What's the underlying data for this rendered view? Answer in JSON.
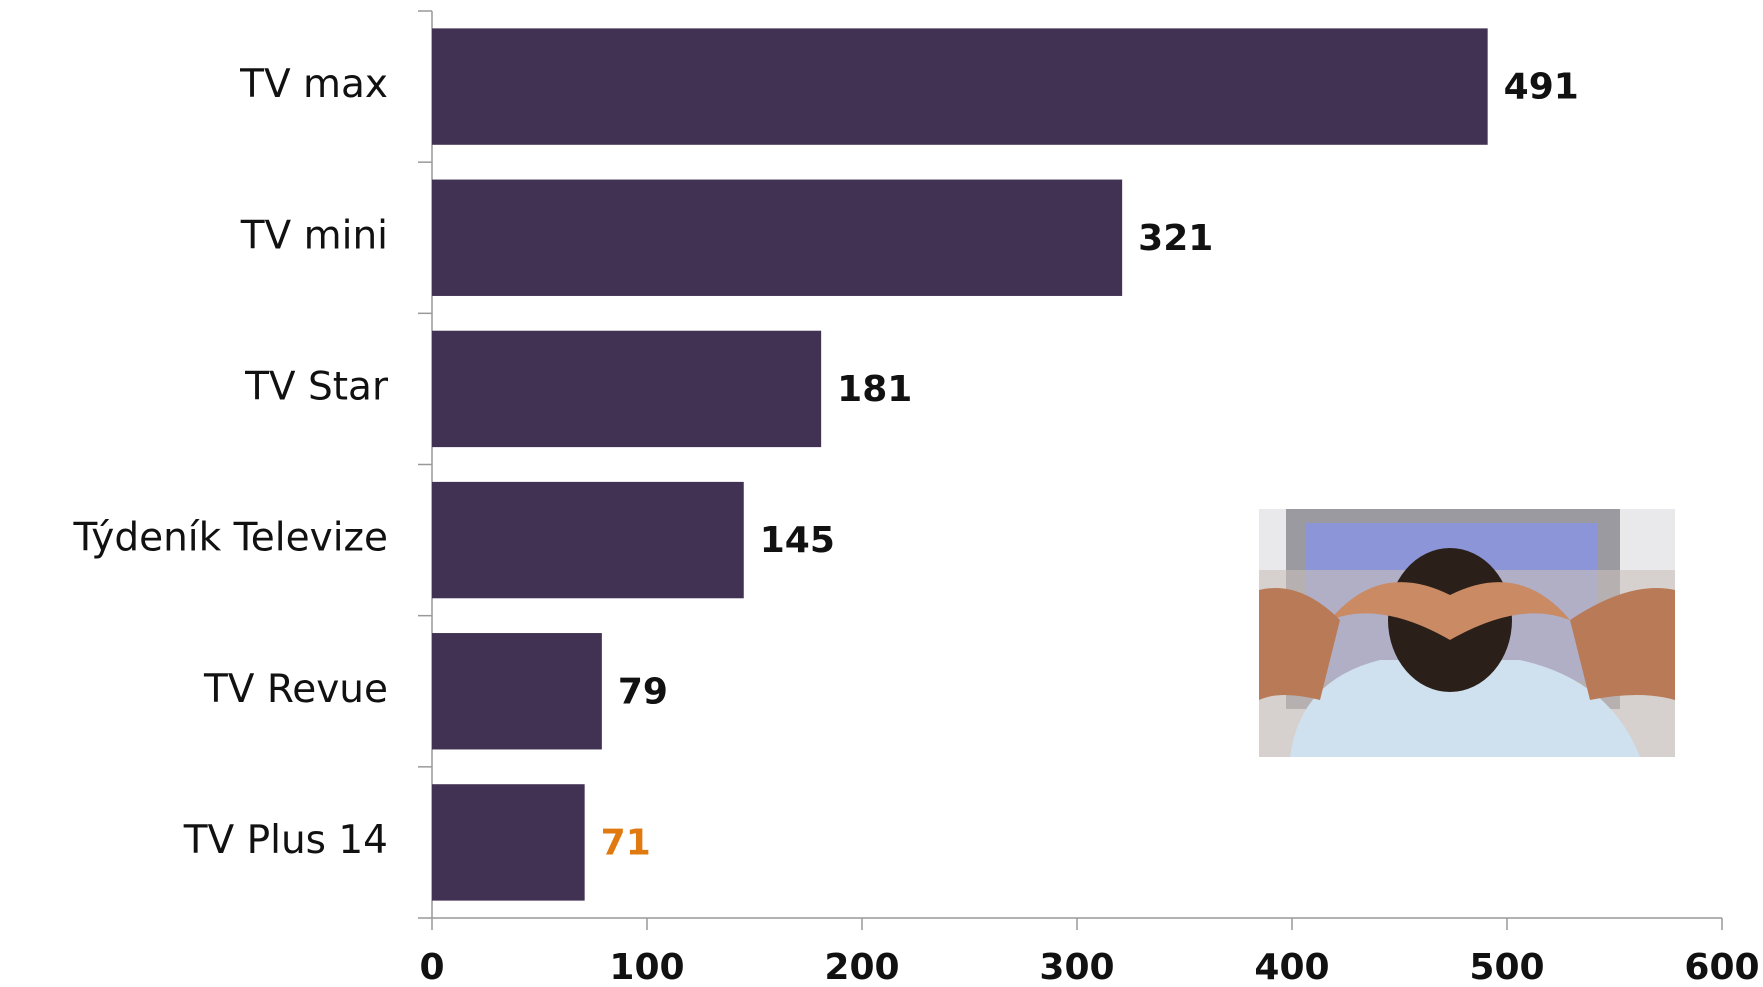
{
  "chart_data": {
    "type": "hbar",
    "categories": [
      "TV max",
      "TV mini",
      "TV Star",
      "Týdeník Televize",
      "TV Revue",
      "TV Plus 14"
    ],
    "values": [
      491,
      321,
      181,
      145,
      79,
      71
    ],
    "color": "#413152",
    "label_colors": [
      "#111111",
      "#111111",
      "#111111",
      "#111111",
      "#111111",
      "#e07a10"
    ],
    "xlim": [
      0,
      600
    ],
    "xticks": [
      0,
      100,
      200,
      300,
      400,
      500,
      600
    ]
  }
}
